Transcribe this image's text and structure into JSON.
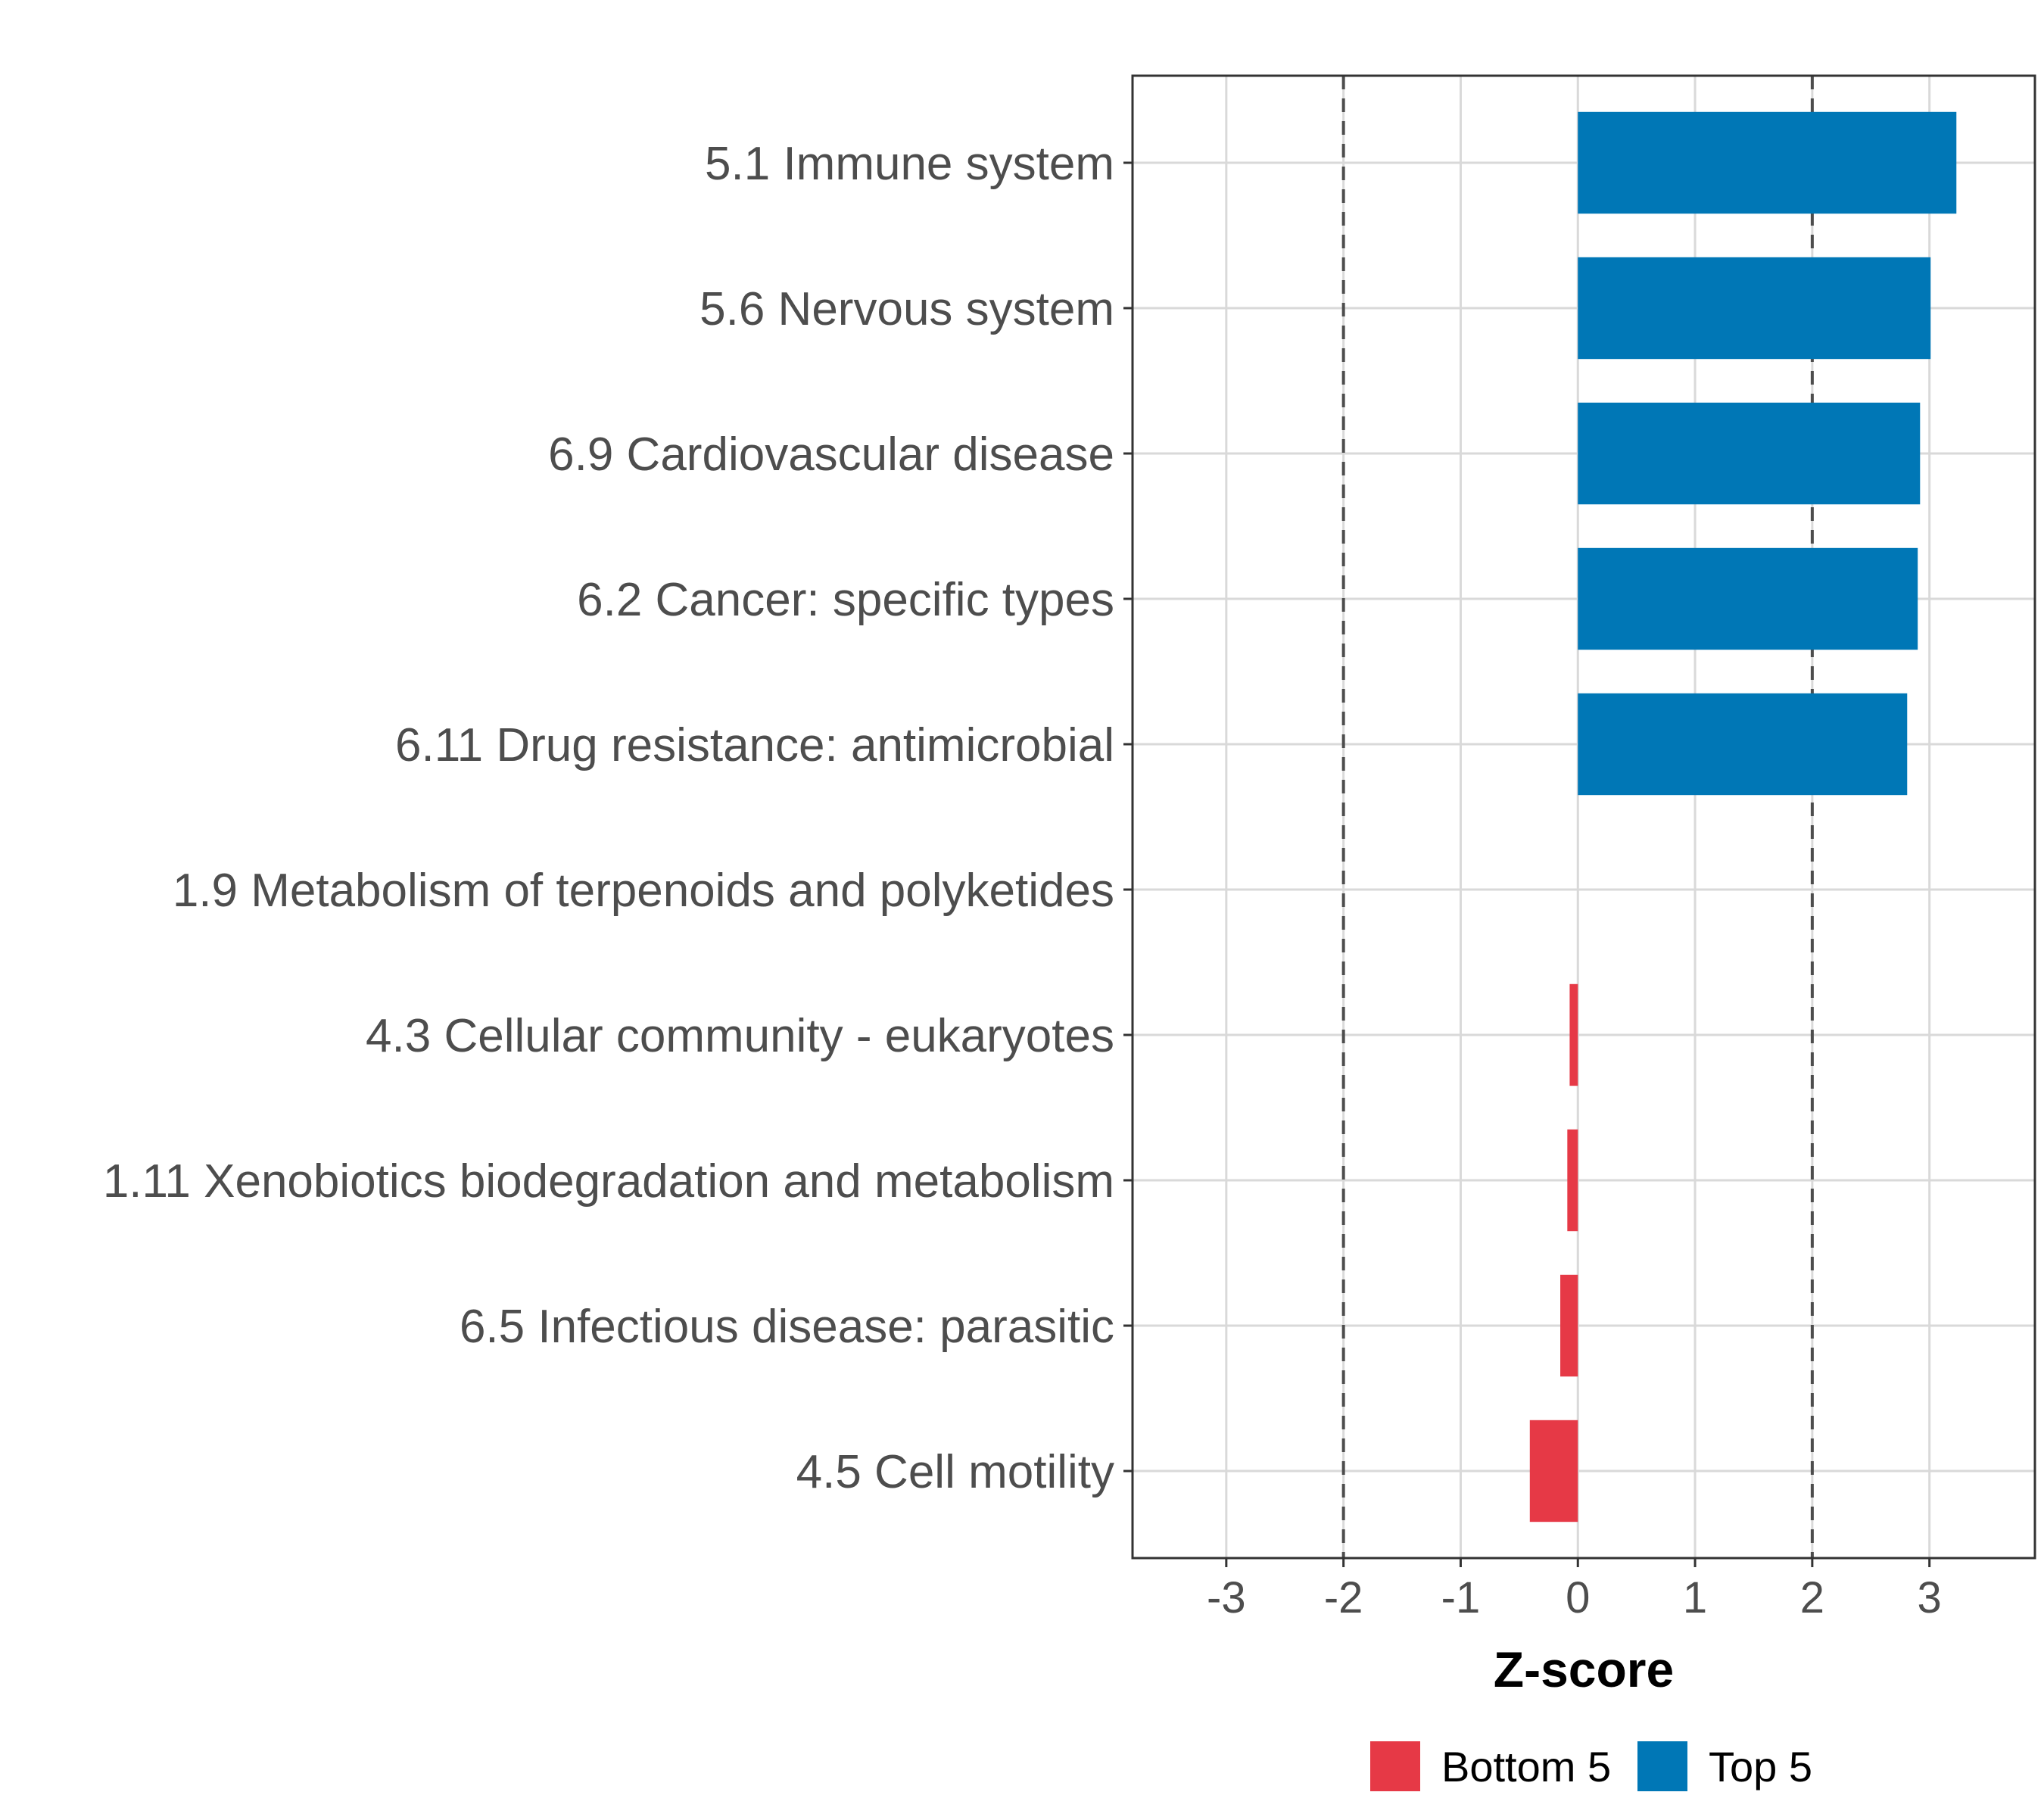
{
  "chart_data": {
    "type": "bar",
    "orientation": "horizontal",
    "xlabel": "Z-score",
    "ylabel": "",
    "xlim": [
      -3.8,
      3.9
    ],
    "xticks": [
      -3,
      -2,
      -1,
      0,
      1,
      2,
      3
    ],
    "xtick_labels": [
      "-3",
      "-2",
      "-1",
      "0",
      "1",
      "2",
      "3"
    ],
    "reference_lines": [
      -2,
      2
    ],
    "grid": true,
    "legend_position": "bottom",
    "categories": [
      "5.1 Immune system",
      "5.6 Nervous system",
      "6.9 Cardiovascular disease",
      "6.2 Cancer: specific types",
      "6.11 Drug resistance: antimicrobial",
      "1.9 Metabolism of terpenoids and polyketides",
      "4.3 Cellular community - eukaryotes",
      "1.11 Xenobiotics biodegradation and metabolism",
      "6.5 Infectious disease: parasitic",
      "4.5 Cell motility"
    ],
    "values": [
      3.23,
      3.01,
      2.92,
      2.9,
      2.81,
      0.0,
      -0.07,
      -0.09,
      -0.15,
      -0.41
    ],
    "groups": [
      "Top 5",
      "Top 5",
      "Top 5",
      "Top 5",
      "Top 5",
      "Bottom 5",
      "Bottom 5",
      "Bottom 5",
      "Bottom 5",
      "Bottom 5"
    ],
    "legend": [
      {
        "name": "Bottom 5",
        "color": "#e63946"
      },
      {
        "name": "Top 5",
        "color": "#0077b6"
      }
    ],
    "colors": {
      "Top 5": "#0077b6",
      "Bottom 5": "#e63946",
      "grid": "#d9d9d9",
      "panel_border": "#333333",
      "reference_line": "#4d4d4d"
    }
  }
}
